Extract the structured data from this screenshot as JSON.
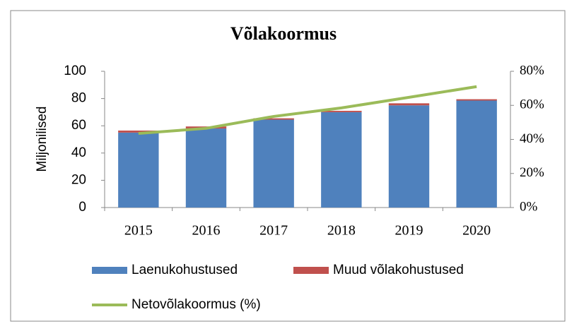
{
  "chart_data": {
    "type": "bar",
    "stacked": true,
    "title": "Võlakoormus",
    "ylabel": "Miljonilised",
    "categories": [
      "2015",
      "2016",
      "2017",
      "2018",
      "2019",
      "2020"
    ],
    "series": [
      {
        "name": "Laenukohustused",
        "color": "#4f81bd",
        "values": [
          55,
          58,
          64.5,
          70,
          75,
          78.5
        ]
      },
      {
        "name": "Muud võlakohustused",
        "color": "#c0504d",
        "values": [
          1.5,
          1.5,
          1,
          1,
          1.5,
          1
        ]
      },
      {
        "name": "Netovõlakoormus (%)",
        "color": "#9bbb59",
        "type": "line",
        "axis": "y2",
        "values": [
          43.5,
          46.5,
          53.5,
          58.5,
          64.7,
          71
        ]
      }
    ],
    "ylim": [
      0,
      100
    ],
    "yticks": [
      0,
      20,
      40,
      60,
      80,
      100
    ],
    "y2lim": [
      0,
      80
    ],
    "y2ticks": [
      {
        "value": 0,
        "label": "0%"
      },
      {
        "value": 20,
        "label": "20%"
      },
      {
        "value": 40,
        "label": "40%"
      },
      {
        "value": 60,
        "label": "60%"
      },
      {
        "value": 80,
        "label": "80%"
      }
    ]
  }
}
